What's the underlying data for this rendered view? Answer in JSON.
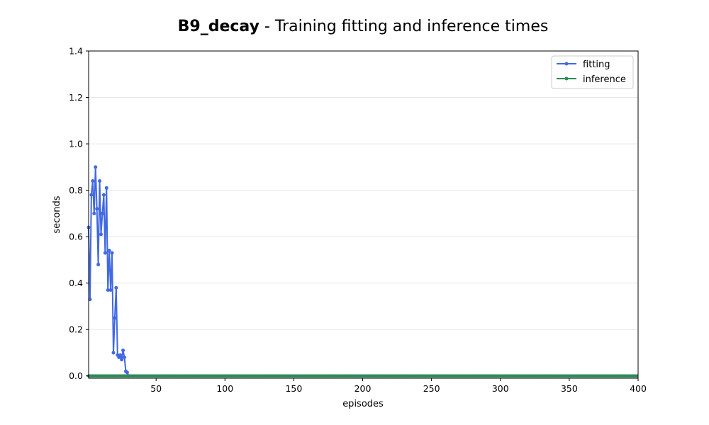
{
  "chart_data": {
    "type": "line",
    "title_bold": "B9_decay",
    "title_rest": " - Training fitting and inference times",
    "xlabel": "episodes",
    "ylabel": "seconds",
    "xlim": [
      1,
      400
    ],
    "ylim": [
      -0.01,
      1.4
    ],
    "xticks": [
      50,
      100,
      150,
      200,
      250,
      300,
      350,
      400
    ],
    "yticks": [
      0.0,
      0.2,
      0.4,
      0.6,
      0.8,
      1.0,
      1.2,
      1.4
    ],
    "ytick_labels": [
      "0.0",
      "0.2",
      "0.4",
      "0.6",
      "0.8",
      "1.0",
      "1.2",
      "1.4"
    ],
    "grid": "horizontal",
    "legend_position": "top-right",
    "series": [
      {
        "name": "fitting",
        "color": "#4169e1",
        "x": [
          1,
          2,
          3,
          4,
          5,
          6,
          7,
          8,
          9,
          10,
          11,
          12,
          13,
          14,
          15,
          16,
          17,
          18,
          19,
          20,
          21,
          22,
          23,
          24,
          25,
          26,
          27,
          28,
          29,
          30
        ],
        "y": [
          0.64,
          0.33,
          0.78,
          0.84,
          0.7,
          0.9,
          0.72,
          0.48,
          0.84,
          0.61,
          0.7,
          0.78,
          0.53,
          0.81,
          0.37,
          0.54,
          0.37,
          0.53,
          0.1,
          0.25,
          0.38,
          0.09,
          0.08,
          0.09,
          0.07,
          0.11,
          0.08,
          0.02,
          0.015,
          0.0
        ]
      },
      {
        "name": "inference",
        "color": "#2e8b57",
        "x_range": [
          1,
          400
        ],
        "y_value": 0.0
      }
    ]
  }
}
